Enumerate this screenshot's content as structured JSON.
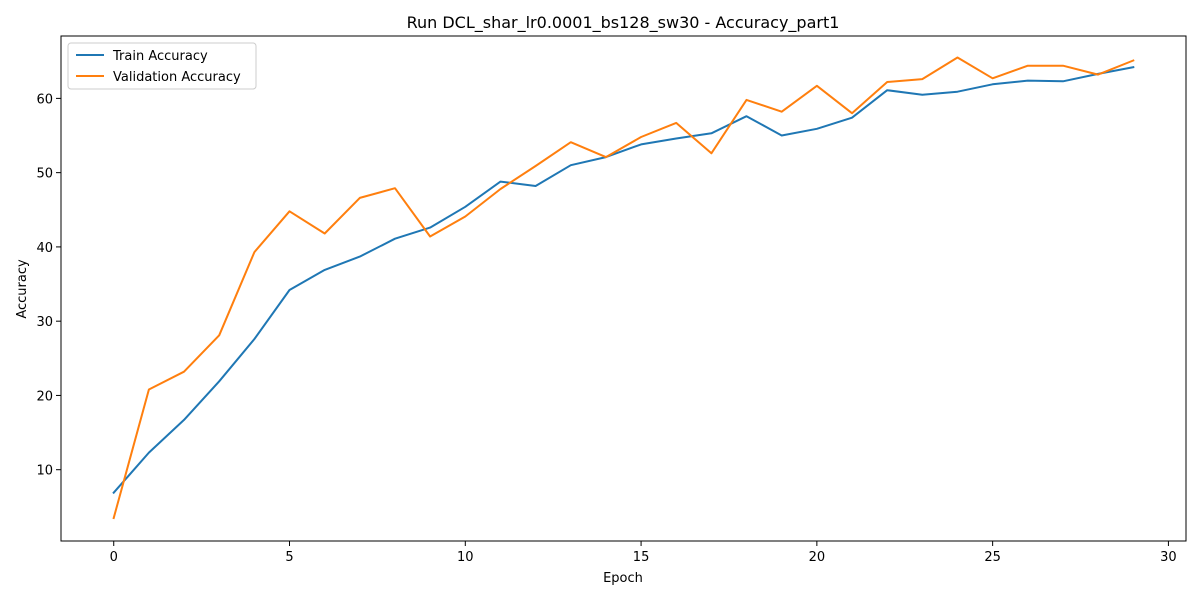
{
  "chart_data": {
    "type": "line",
    "title": "Run DCL_shar_lr0.0001_bs128_sw30 - Accuracy_part1",
    "xlabel": "Epoch",
    "ylabel": "Accuracy",
    "xlim": [
      -1.5,
      30.5
    ],
    "ylim": [
      0.4,
      68.4
    ],
    "xticks": [
      0,
      5,
      10,
      15,
      20,
      25,
      30
    ],
    "yticks": [
      10,
      20,
      30,
      40,
      50,
      60
    ],
    "grid": false,
    "legend_position": "upper-left",
    "x": [
      0,
      1,
      2,
      3,
      4,
      5,
      6,
      7,
      8,
      9,
      10,
      11,
      12,
      13,
      14,
      15,
      16,
      17,
      18,
      19,
      20,
      21,
      22,
      23,
      24,
      25,
      26,
      27,
      28,
      29
    ],
    "series": [
      {
        "name": "Train Accuracy",
        "color": "#1f77b4",
        "values": [
          6.9,
          12.3,
          16.7,
          21.9,
          27.6,
          34.2,
          36.9,
          38.7,
          41.1,
          42.6,
          45.4,
          48.8,
          48.2,
          51.0,
          52.1,
          53.8,
          54.6,
          55.3,
          57.6,
          55.0,
          55.9,
          57.4,
          61.1,
          60.5,
          60.9,
          61.9,
          62.4,
          62.3,
          63.3,
          64.2
        ]
      },
      {
        "name": "Validation Accuracy",
        "color": "#ff7f0e",
        "values": [
          3.5,
          20.8,
          23.2,
          28.1,
          39.3,
          44.8,
          41.8,
          46.6,
          47.9,
          41.4,
          44.1,
          47.8,
          50.9,
          54.1,
          52.1,
          54.8,
          56.7,
          52.6,
          59.8,
          58.2,
          61.7,
          58.0,
          62.2,
          62.6,
          65.5,
          62.7,
          64.4,
          64.4,
          63.2,
          65.1
        ]
      }
    ]
  }
}
